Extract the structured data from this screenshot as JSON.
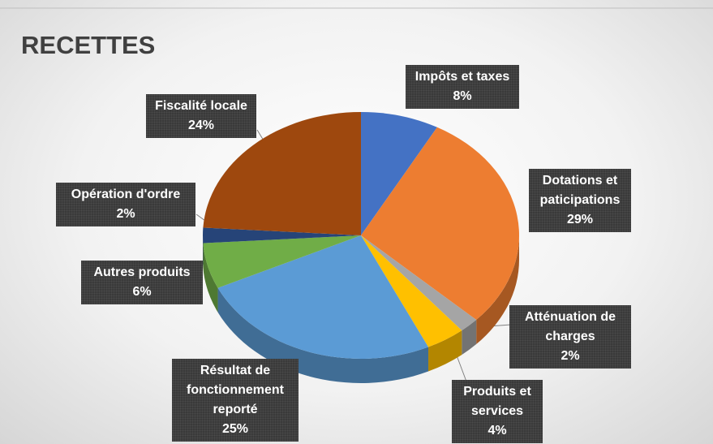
{
  "chart_data": {
    "type": "pie",
    "title": "RECETTES",
    "categories": [
      "Impôts et taxes",
      "Dotations et paticipations",
      "Atténuation de charges",
      "Produits et services",
      "Résultat de fonctionnement reporté",
      "Autres produits",
      "Opération d'ordre",
      "Fiscalité locale"
    ],
    "values": [
      8,
      29,
      2,
      4,
      25,
      6,
      2,
      24
    ],
    "value_labels": [
      "8%",
      "29%",
      "2%",
      "4%",
      "25%",
      "6%",
      "2%",
      "24%"
    ],
    "colors": [
      "#4472c4",
      "#ed7d31",
      "#a5a5a5",
      "#ffc000",
      "#5b9bd5",
      "#70ad47",
      "#264478",
      "#9e480e"
    ]
  }
}
